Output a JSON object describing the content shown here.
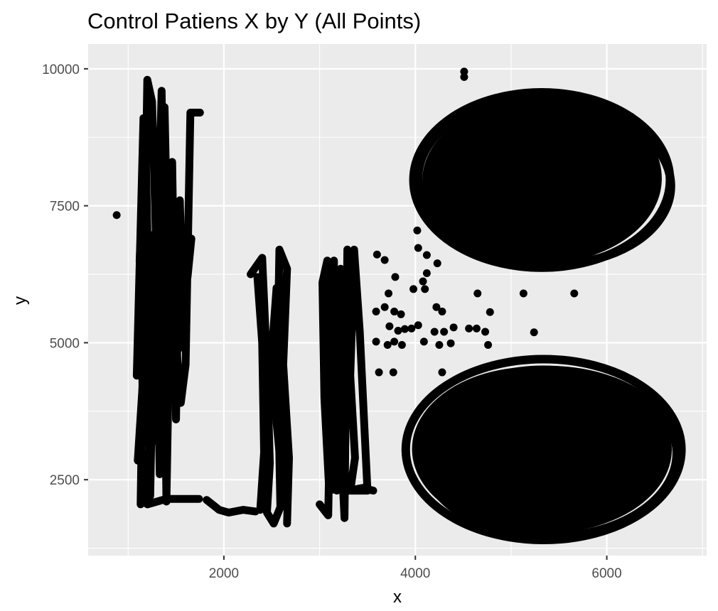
{
  "chart_data": {
    "type": "scatter",
    "title": "Control Patiens X by Y (All Points)",
    "xlabel": "x",
    "ylabel": "y",
    "xlim": [
      582,
      7043
    ],
    "ylim": [
      1115,
      10452
    ],
    "x_ticks": [
      {
        "value": 2000,
        "label": "2000"
      },
      {
        "value": 4000,
        "label": "4000"
      },
      {
        "value": 6000,
        "label": "6000"
      }
    ],
    "y_ticks": [
      {
        "value": 2500,
        "label": "2500"
      },
      {
        "value": 5000,
        "label": "5000"
      },
      {
        "value": 7500,
        "label": "7500"
      },
      {
        "value": 10000,
        "label": "10000"
      }
    ],
    "x_minor": [
      1000,
      3000,
      5000,
      7000
    ],
    "y_minor": [
      1250,
      3750,
      6250,
      8750
    ],
    "grid": true,
    "panel_color": "#ebebeb",
    "grid_color": "#ffffff",
    "point_color": "#000000",
    "legend": "none",
    "series": [
      {
        "name": "",
        "points": [
          [
            880,
            7330
          ],
          [
            4510,
            9950
          ],
          [
            4510,
            9850
          ],
          [
            3600,
            6610
          ],
          [
            3680,
            6510
          ],
          [
            3790,
            6200
          ],
          [
            3720,
            5900
          ],
          [
            3680,
            5650
          ],
          [
            3590,
            5570
          ],
          [
            3780,
            5570
          ],
          [
            3850,
            5520
          ],
          [
            3730,
            5300
          ],
          [
            3820,
            5220
          ],
          [
            3890,
            5250
          ],
          [
            3590,
            5020
          ],
          [
            3710,
            4960
          ],
          [
            3780,
            5020
          ],
          [
            3860,
            4960
          ],
          [
            3620,
            4460
          ],
          [
            3770,
            4460
          ],
          [
            3980,
            5980
          ],
          [
            4030,
            6730
          ],
          [
            4120,
            6600
          ],
          [
            4120,
            6270
          ],
          [
            4080,
            6120
          ],
          [
            4230,
            6450
          ],
          [
            4100,
            5980
          ],
          [
            4220,
            5650
          ],
          [
            4280,
            5570
          ],
          [
            3960,
            5260
          ],
          [
            4030,
            5320
          ],
          [
            4090,
            5020
          ],
          [
            4200,
            5200
          ],
          [
            4300,
            5200
          ],
          [
            4250,
            4960
          ],
          [
            4370,
            4990
          ],
          [
            4400,
            5280
          ],
          [
            4280,
            4460
          ],
          [
            4650,
            5900
          ],
          [
            4780,
            5560
          ],
          [
            4560,
            5260
          ],
          [
            4640,
            5260
          ],
          [
            4730,
            5200
          ],
          [
            4760,
            4960
          ],
          [
            5130,
            5900
          ],
          [
            5240,
            5190
          ],
          [
            5660,
            5900
          ],
          [
            4020,
            7050
          ],
          [
            4500,
            6840
          ]
        ],
        "paths": [
          [
            [
              1130,
              2050
            ],
            [
              1200,
              9800
            ],
            [
              1250,
              9400
            ],
            [
              1300,
              6300
            ],
            [
              1350,
              9600
            ],
            [
              1400,
              2100
            ],
            [
              1450,
              7200
            ],
            [
              1500,
              5000
            ],
            [
              1550,
              3900
            ],
            [
              1600,
              4600
            ],
            [
              1650,
              9200
            ],
            [
              1750,
              9200
            ]
          ],
          [
            [
              1100,
              2850
            ],
            [
              1150,
              4200
            ],
            [
              1120,
              6500
            ],
            [
              1180,
              8700
            ],
            [
              1220,
              5500
            ],
            [
              1260,
              3200
            ],
            [
              1300,
              8000
            ],
            [
              1340,
              4300
            ],
            [
              1380,
              9300
            ],
            [
              1420,
              6000
            ],
            [
              1460,
              8300
            ],
            [
              1500,
              3600
            ],
            [
              1540,
              7600
            ],
            [
              1580,
              4900
            ],
            [
              1620,
              6900
            ]
          ],
          [
            [
              1090,
              4400
            ],
            [
              1160,
              9100
            ],
            [
              1230,
              2200
            ],
            [
              1280,
              7000
            ],
            [
              1330,
              2600
            ],
            [
              1380,
              8700
            ],
            [
              1430,
              4500
            ],
            [
              1480,
              6700
            ],
            [
              1530,
              5300
            ],
            [
              1570,
              7100
            ],
            [
              1620,
              6200
            ],
            [
              1660,
              6900
            ]
          ],
          [
            [
              1120,
              3400
            ],
            [
              1200,
              2050
            ],
            [
              1400,
              2150
            ],
            [
              1600,
              2150
            ],
            [
              1740,
              2150
            ]
          ],
          [
            [
              1820,
              2130
            ],
            [
              1950,
              1950
            ],
            [
              2050,
              1900
            ],
            [
              2200,
              1950
            ],
            [
              2330,
              1920
            ]
          ],
          [
            [
              2280,
              6250
            ],
            [
              2400,
              6550
            ],
            [
              2450,
              4600
            ],
            [
              2480,
              2800
            ],
            [
              2450,
              1900
            ],
            [
              2520,
              1700
            ],
            [
              2590,
              2000
            ],
            [
              2560,
              4700
            ],
            [
              2580,
              6700
            ],
            [
              2660,
              6350
            ],
            [
              2620,
              4600
            ],
            [
              2680,
              2900
            ],
            [
              2660,
              1700
            ]
          ],
          [
            [
              2350,
              6200
            ],
            [
              2400,
              5000
            ],
            [
              2420,
              3000
            ],
            [
              2380,
              1950
            ],
            [
              2550,
              6000
            ],
            [
              2530,
              3900
            ],
            [
              2620,
              2300
            ],
            [
              2610,
              6100
            ]
          ],
          [
            [
              3000,
              2050
            ],
            [
              3090,
              1850
            ],
            [
              3120,
              4700
            ],
            [
              3080,
              6500
            ],
            [
              3030,
              6100
            ],
            [
              3050,
              4000
            ],
            [
              3100,
              2300
            ],
            [
              3150,
              6500
            ],
            [
              3140,
              4100
            ],
            [
              3180,
              2300
            ],
            [
              3220,
              6350
            ],
            [
              3200,
              4000
            ],
            [
              3260,
              1800
            ],
            [
              3290,
              6700
            ],
            [
              3360,
              6500
            ],
            [
              3320,
              4400
            ],
            [
              3370,
              2900
            ],
            [
              3320,
              2300
            ],
            [
              3500,
              2300
            ],
            [
              3420,
              5200
            ],
            [
              3360,
              6700
            ]
          ],
          [
            [
              3100,
              2300
            ],
            [
              3200,
              2350
            ],
            [
              3300,
              2300
            ],
            [
              3450,
              2350
            ],
            [
              3560,
              2300
            ]
          ]
        ],
        "ellipses": [
          {
            "cx": 5320,
            "cy": 7970,
            "rx": 1340,
            "ry": 1600
          },
          {
            "cx": 5280,
            "cy": 8000,
            "rx": 1250,
            "ry": 1490
          },
          {
            "cx": 5470,
            "cy": 7860,
            "rx": 1200,
            "ry": 1420
          },
          {
            "cx": 5260,
            "cy": 7950,
            "rx": 1000,
            "ry": 1230
          },
          {
            "cx": 5440,
            "cy": 8010,
            "rx": 840,
            "ry": 1010
          },
          {
            "cx": 5340,
            "cy": 3050,
            "rx": 1440,
            "ry": 1650
          },
          {
            "cx": 5400,
            "cy": 2980,
            "rx": 1330,
            "ry": 1520
          },
          {
            "cx": 5220,
            "cy": 3060,
            "rx": 1210,
            "ry": 1420
          },
          {
            "cx": 5420,
            "cy": 2970,
            "rx": 1060,
            "ry": 1230
          },
          {
            "cx": 5300,
            "cy": 3030,
            "rx": 860,
            "ry": 1000
          }
        ]
      }
    ]
  }
}
